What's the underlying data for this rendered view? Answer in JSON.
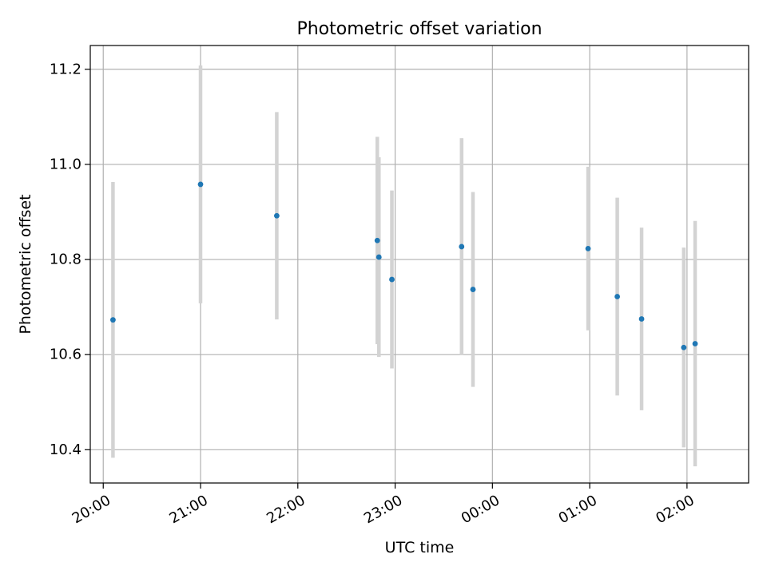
{
  "chart_data": {
    "type": "scatter",
    "title": "Photometric offset variation",
    "xlabel": "UTC time",
    "ylabel": "Photometric offset",
    "x_axis_type": "time",
    "xlim": [
      "19:52",
      "02:38"
    ],
    "ylim": [
      10.33,
      11.25
    ],
    "xticks": [
      "20:00",
      "21:00",
      "22:00",
      "23:00",
      "00:00",
      "01:00",
      "02:00"
    ],
    "yticks": [
      10.4,
      10.6,
      10.8,
      11.0,
      11.2
    ],
    "grid": true,
    "colors": {
      "point": "#1f77b4",
      "errorbar": "#d3d3d3",
      "grid": "#b0b0b0"
    },
    "series": [
      {
        "points": [
          {
            "x": "20:06",
            "y": 10.673,
            "yerr": 0.29
          },
          {
            "x": "21:00",
            "y": 10.958,
            "yerr": 0.25
          },
          {
            "x": "21:47",
            "y": 10.892,
            "yerr": 0.218
          },
          {
            "x": "22:49",
            "y": 10.84,
            "yerr": 0.218
          },
          {
            "x": "22:50",
            "y": 10.805,
            "yerr": 0.21
          },
          {
            "x": "22:58",
            "y": 10.758,
            "yerr": 0.187
          },
          {
            "x": "23:41",
            "y": 10.827,
            "yerr": 0.228
          },
          {
            "x": "23:48",
            "y": 10.737,
            "yerr": 0.205
          },
          {
            "x": "00:59",
            "y": 10.823,
            "yerr": 0.172
          },
          {
            "x": "01:17",
            "y": 10.722,
            "yerr": 0.208
          },
          {
            "x": "01:32",
            "y": 10.675,
            "yerr": 0.192
          },
          {
            "x": "01:58",
            "y": 10.615,
            "yerr": 0.21
          },
          {
            "x": "02:05",
            "y": 10.623,
            "yerr": 0.258
          }
        ]
      }
    ]
  }
}
